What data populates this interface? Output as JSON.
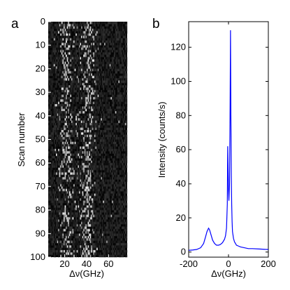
{
  "figure": {
    "panels": [
      {
        "letter": "a"
      },
      {
        "letter": "b"
      }
    ]
  },
  "chart_data": [
    {
      "panel": "a",
      "type": "heatmap",
      "title": "",
      "xlabel": "Δν(GHz)",
      "ylabel": "Scan number",
      "xlim": [
        5,
        77
      ],
      "ylim": [
        0,
        100
      ],
      "y_inverted": true,
      "xticks": [
        20,
        40,
        60
      ],
      "yticks": [
        0,
        10,
        20,
        30,
        40,
        50,
        60,
        70,
        80,
        90,
        100
      ],
      "colormap": "gray",
      "description_of_values": "bright pixel clusters near x=22 (scans 0-100) and x=40 (scans 0-100, drifting), sparse noise elsewhere",
      "bright_bands": [
        {
          "center_x": 22,
          "width": 5,
          "from_scan": 0,
          "to_scan": 100
        },
        {
          "center_x": 40,
          "width": 6,
          "from_scan": 0,
          "to_scan": 100
        }
      ]
    },
    {
      "panel": "b",
      "type": "line",
      "title": "",
      "xlabel": "Δν(GHz)",
      "ylabel": "Intensity (counts/s)",
      "xlim": [
        -200,
        200
      ],
      "ylim": [
        -3,
        135
      ],
      "xticks": [
        -200,
        0,
        200
      ],
      "yticks": [
        0,
        20,
        40,
        60,
        80,
        100,
        120
      ],
      "color": "#0000ff",
      "series": [
        {
          "x": [
            -200,
            -180,
            -160,
            -140,
            -125,
            -115,
            -108,
            -100,
            -95,
            -90,
            -85,
            -80,
            -70,
            -60,
            -50,
            -40,
            -30,
            -20,
            -15,
            -10,
            -6,
            -4,
            -2,
            0,
            2,
            5,
            8,
            10,
            12,
            14,
            16,
            18,
            20,
            25,
            30,
            35,
            40,
            50,
            60,
            80,
            100,
            120,
            150,
            180,
            200
          ],
          "y": [
            1,
            1.2,
            1.5,
            2.5,
            5,
            9,
            12,
            14,
            13,
            11,
            9,
            7,
            5,
            4,
            4,
            4.5,
            5.5,
            7.5,
            9.5,
            14,
            28,
            62,
            50,
            36,
            30,
            40,
            85,
            130,
            80,
            45,
            28,
            18,
            12,
            8,
            6,
            5,
            4,
            3.5,
            3,
            2.5,
            2,
            2,
            1.8,
            1.6,
            1.5
          ]
        }
      ]
    }
  ]
}
